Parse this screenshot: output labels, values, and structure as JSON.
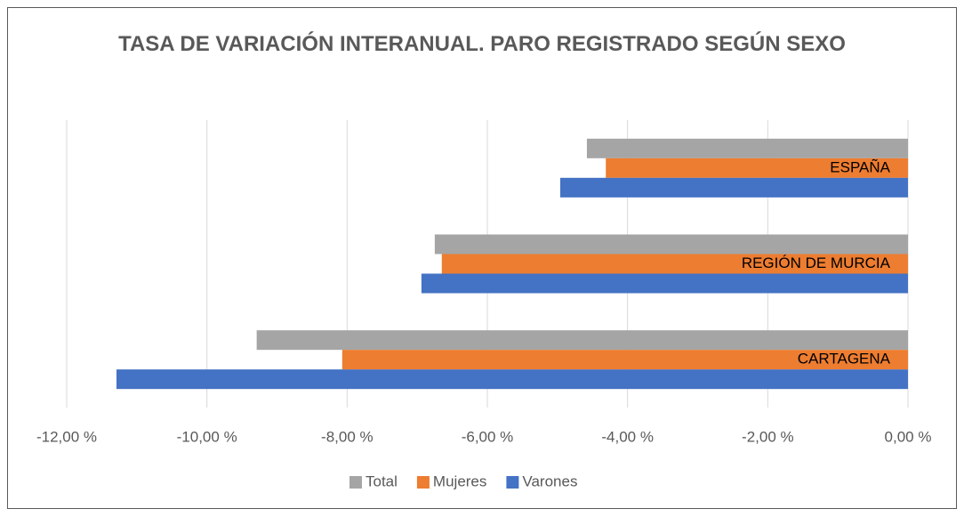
{
  "chart_data": {
    "type": "bar",
    "orientation": "horizontal",
    "title": "TASA DE VARIACIÓN INTERANUAL. PARO REGISTRADO SEGÚN SEXO",
    "categories": [
      "ESPAÑA",
      "REGIÓN DE MURCIA",
      "CARTAGENA"
    ],
    "series": [
      {
        "name": "Total",
        "color": "#a5a5a5",
        "values": [
          -4.58,
          -6.75,
          -9.29
        ]
      },
      {
        "name": "Mujeres",
        "color": "#ed7d31",
        "values": [
          -4.31,
          -6.65,
          -8.07
        ]
      },
      {
        "name": "Varones",
        "color": "#4472c4",
        "values": [
          -4.96,
          -6.94,
          -11.29
        ]
      }
    ],
    "xlim": [
      -12,
      0
    ],
    "xticks": [
      {
        "value": -12,
        "label": "-12,00 %"
      },
      {
        "value": -10,
        "label": "-10,00 %"
      },
      {
        "value": -8,
        "label": "-8,00 %"
      },
      {
        "value": -6,
        "label": "-6,00 %"
      },
      {
        "value": -4,
        "label": "-4,00 %"
      },
      {
        "value": -2,
        "label": "-2,00 %"
      },
      {
        "value": 0,
        "label": "0,00 %"
      }
    ],
    "grid": true,
    "legend": "bottom"
  }
}
